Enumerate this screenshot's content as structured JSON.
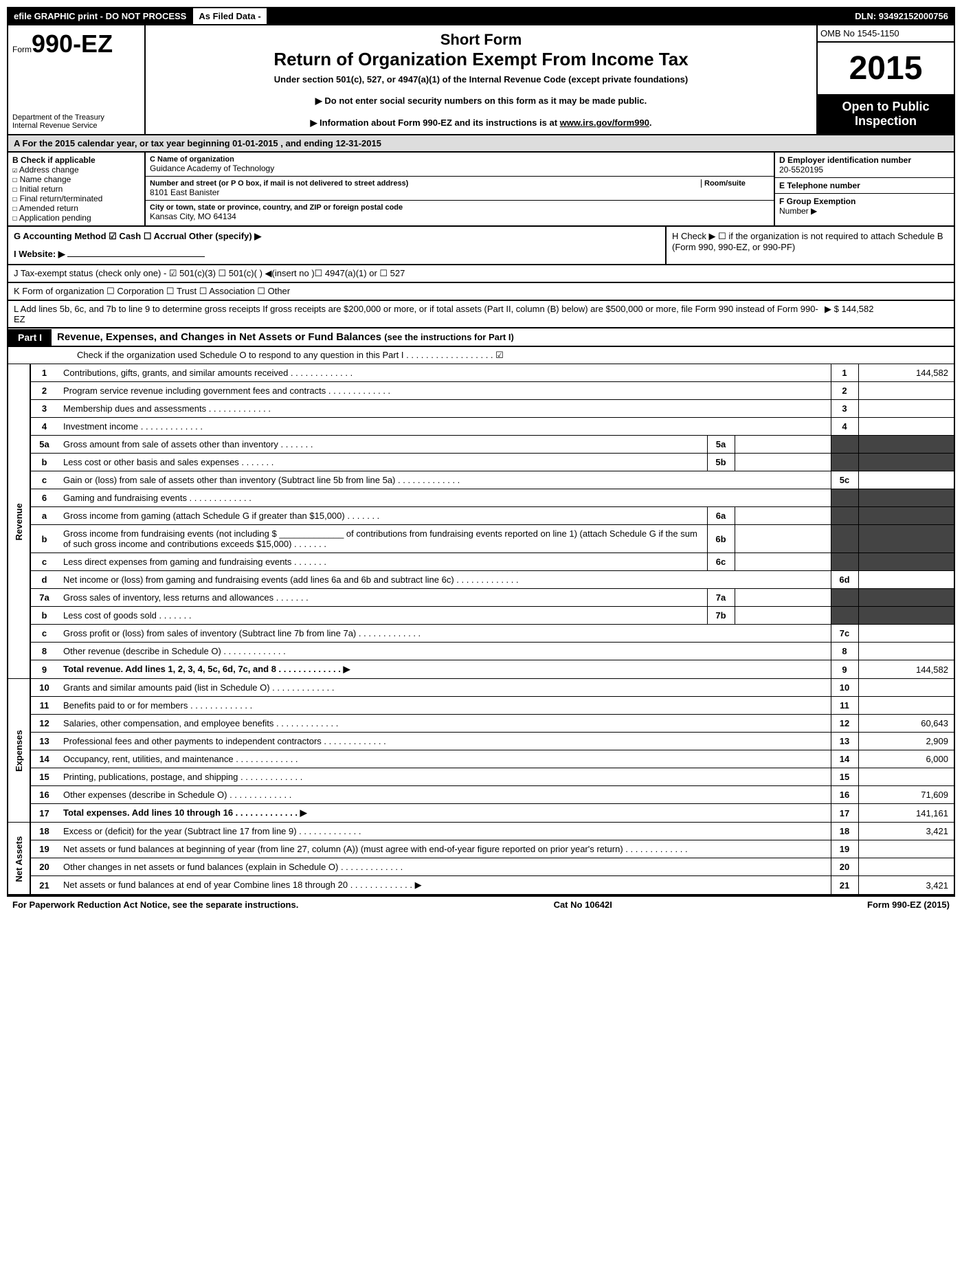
{
  "topbar": {
    "left": "efile GRAPHIC print - DO NOT PROCESS",
    "mid": "As Filed Data -",
    "dln_label": "DLN:",
    "dln": "93492152000756"
  },
  "header": {
    "form_label": "Form",
    "form_number": "990-EZ",
    "dept1": "Department of the Treasury",
    "dept2": "Internal Revenue Service",
    "title1": "Short Form",
    "title2": "Return of Organization Exempt From Income Tax",
    "subtitle": "Under section 501(c), 527, or 4947(a)(1) of the Internal Revenue Code (except private foundations)",
    "notice1": "▶ Do not enter social security numbers on this form as it may be made public.",
    "notice2_pre": "▶ Information about Form 990-EZ and its instructions is at ",
    "notice2_link": "www.irs.gov/form990",
    "notice2_post": ".",
    "omb": "OMB No 1545-1150",
    "year": "2015",
    "open_public1": "Open to Public",
    "open_public2": "Inspection"
  },
  "row_a": {
    "label": "A  For the 2015 calendar year, or tax year beginning",
    "begin": "01-01-2015",
    "mid": ", and ending",
    "end": "12-31-2015"
  },
  "col_b": {
    "hdr": "B  Check if applicable",
    "items": [
      {
        "chk": "☑",
        "label": "Address change"
      },
      {
        "chk": "☐",
        "label": "Name change"
      },
      {
        "chk": "☐",
        "label": "Initial return"
      },
      {
        "chk": "☐",
        "label": "Final return/terminated"
      },
      {
        "chk": "☐",
        "label": "Amended return"
      },
      {
        "chk": "☐",
        "label": "Application pending"
      }
    ]
  },
  "col_c": {
    "name_lbl": "C Name of organization",
    "name": "Guidance Academy of Technology",
    "street_lbl": "Number and street (or P  O  box, if mail is not delivered to street address)",
    "room_lbl": "Room/suite",
    "street": "8101 East Banister",
    "city_lbl": "City or town, state or province, country, and ZIP or foreign postal code",
    "city": "Kansas City, MO  64134"
  },
  "col_def": {
    "d_lbl": "D Employer identification number",
    "d_val": "20-5520195",
    "e_lbl": "E Telephone number",
    "e_val": "",
    "f_lbl": "F Group Exemption",
    "f_lbl2": "Number  ▶",
    "f_val": ""
  },
  "row_g": {
    "g_label": "G Accounting Method   ☑ Cash  ☐ Accrual   Other (specify) ▶",
    "h_label": "H   Check ▶ ☐ if the organization is not required to attach Schedule B (Form 990, 990-EZ, or 990-PF)",
    "i_label": "I Website: ▶",
    "j_label": "J Tax-exempt status (check only one) - ☑ 501(c)(3) ☐ 501(c)(  ) ◀(insert no )☐ 4947(a)(1) or ☐ 527",
    "k_label": "K Form of organization   ☐ Corporation  ☐ Trust  ☐ Association  ☐ Other"
  },
  "row_l": {
    "text": "L Add lines 5b, 6c, and 7b to line 9 to determine gross receipts  If gross receipts are $200,000 or more, or if total assets (Part II, column (B) below) are $500,000 or more, file Form 990 instead of Form 990-EZ",
    "val": "▶ $ 144,582"
  },
  "part1": {
    "label": "Part I",
    "title": "Revenue, Expenses, and Changes in Net Assets or Fund Balances",
    "sub": "(see the instructions for Part I)",
    "check_o": "Check if the organization used Schedule O to respond to any question in this Part I . . . . . . . . . . . . . . . . . . ☑"
  },
  "side_labels": {
    "revenue": "Revenue",
    "expenses": "Expenses",
    "netassets": "Net Assets"
  },
  "lines": [
    {
      "group": "revenue",
      "no": "1",
      "desc": "Contributions, gifts, grants, and similar amounts received",
      "rno": "1",
      "rval": "144,582"
    },
    {
      "group": "revenue",
      "no": "2",
      "desc": "Program service revenue including government fees and contracts",
      "rno": "2",
      "rval": ""
    },
    {
      "group": "revenue",
      "no": "3",
      "desc": "Membership dues and assessments",
      "rno": "3",
      "rval": ""
    },
    {
      "group": "revenue",
      "no": "4",
      "desc": "Investment income",
      "rno": "4",
      "rval": ""
    },
    {
      "group": "revenue",
      "no": "5a",
      "desc": "Gross amount from sale of assets other than inventory",
      "subno": "5a",
      "subval": "",
      "rno": "",
      "rval": "",
      "shade_r": true
    },
    {
      "group": "revenue",
      "no": "b",
      "desc": "Less  cost or other basis and sales expenses",
      "subno": "5b",
      "subval": "",
      "rno": "",
      "rval": "",
      "shade_r": true
    },
    {
      "group": "revenue",
      "no": "c",
      "desc": "Gain or (loss) from sale of assets other than inventory (Subtract line 5b from line 5a)",
      "rno": "5c",
      "rval": ""
    },
    {
      "group": "revenue",
      "no": "6",
      "desc": "Gaming and fundraising events",
      "rno": "",
      "rval": "",
      "shade_r": true
    },
    {
      "group": "revenue",
      "no": "a",
      "desc": "Gross income from gaming (attach Schedule G if greater than $15,000)",
      "subno": "6a",
      "subval": "",
      "rno": "",
      "rval": "",
      "shade_r": true
    },
    {
      "group": "revenue",
      "no": "b",
      "desc": "Gross income from fundraising events (not including $ _____________ of contributions from fundraising events reported on line 1) (attach Schedule G if the sum of such gross income and contributions exceeds $15,000)",
      "subno": "6b",
      "subval": "",
      "rno": "",
      "rval": "",
      "shade_r": true
    },
    {
      "group": "revenue",
      "no": "c",
      "desc": "Less  direct expenses from gaming and fundraising events",
      "subno": "6c",
      "subval": "",
      "rno": "",
      "rval": "",
      "shade_r": true
    },
    {
      "group": "revenue",
      "no": "d",
      "desc": "Net income or (loss) from gaming and fundraising events (add lines 6a and 6b and subtract line 6c)",
      "rno": "6d",
      "rval": ""
    },
    {
      "group": "revenue",
      "no": "7a",
      "desc": "Gross sales of inventory, less returns and allowances",
      "subno": "7a",
      "subval": "",
      "rno": "",
      "rval": "",
      "shade_r": true
    },
    {
      "group": "revenue",
      "no": "b",
      "desc": "Less  cost of goods sold",
      "subno": "7b",
      "subval": "",
      "rno": "",
      "rval": "",
      "shade_r": true
    },
    {
      "group": "revenue",
      "no": "c",
      "desc": "Gross profit or (loss) from sales of inventory (Subtract line 7b from line 7a)",
      "rno": "7c",
      "rval": ""
    },
    {
      "group": "revenue",
      "no": "8",
      "desc": "Other revenue (describe in Schedule O)",
      "rno": "8",
      "rval": ""
    },
    {
      "group": "revenue",
      "no": "9",
      "desc": "Total revenue. Add lines 1, 2, 3, 4, 5c, 6d, 7c, and 8",
      "rno": "9",
      "rval": "144,582",
      "bold": true,
      "arrow": true
    },
    {
      "group": "expenses",
      "no": "10",
      "desc": "Grants and similar amounts paid (list in Schedule O)",
      "rno": "10",
      "rval": ""
    },
    {
      "group": "expenses",
      "no": "11",
      "desc": "Benefits paid to or for members",
      "rno": "11",
      "rval": ""
    },
    {
      "group": "expenses",
      "no": "12",
      "desc": "Salaries, other compensation, and employee benefits",
      "rno": "12",
      "rval": "60,643"
    },
    {
      "group": "expenses",
      "no": "13",
      "desc": "Professional fees and other payments to independent contractors",
      "rno": "13",
      "rval": "2,909"
    },
    {
      "group": "expenses",
      "no": "14",
      "desc": "Occupancy, rent, utilities, and maintenance",
      "rno": "14",
      "rval": "6,000"
    },
    {
      "group": "expenses",
      "no": "15",
      "desc": "Printing, publications, postage, and shipping",
      "rno": "15",
      "rval": ""
    },
    {
      "group": "expenses",
      "no": "16",
      "desc": "Other expenses (describe in Schedule O)",
      "rno": "16",
      "rval": "71,609"
    },
    {
      "group": "expenses",
      "no": "17",
      "desc": "Total expenses. Add lines 10 through 16",
      "rno": "17",
      "rval": "141,161",
      "bold": true,
      "arrow": true
    },
    {
      "group": "netassets",
      "no": "18",
      "desc": "Excess or (deficit) for the year (Subtract line 17 from line 9)",
      "rno": "18",
      "rval": "3,421"
    },
    {
      "group": "netassets",
      "no": "19",
      "desc": "Net assets or fund balances at beginning of year (from line 27, column (A)) (must agree with end-of-year figure reported on prior year's return)",
      "rno": "19",
      "rval": ""
    },
    {
      "group": "netassets",
      "no": "20",
      "desc": "Other changes in net assets or fund balances (explain in Schedule O)",
      "rno": "20",
      "rval": ""
    },
    {
      "group": "netassets",
      "no": "21",
      "desc": "Net assets or fund balances at end of year  Combine lines 18 through 20",
      "rno": "21",
      "rval": "3,421",
      "arrow": true
    }
  ],
  "footer": {
    "left": "For Paperwork Reduction Act Notice, see the separate instructions.",
    "mid": "Cat No 10642I",
    "right": "Form 990-EZ (2015)"
  }
}
